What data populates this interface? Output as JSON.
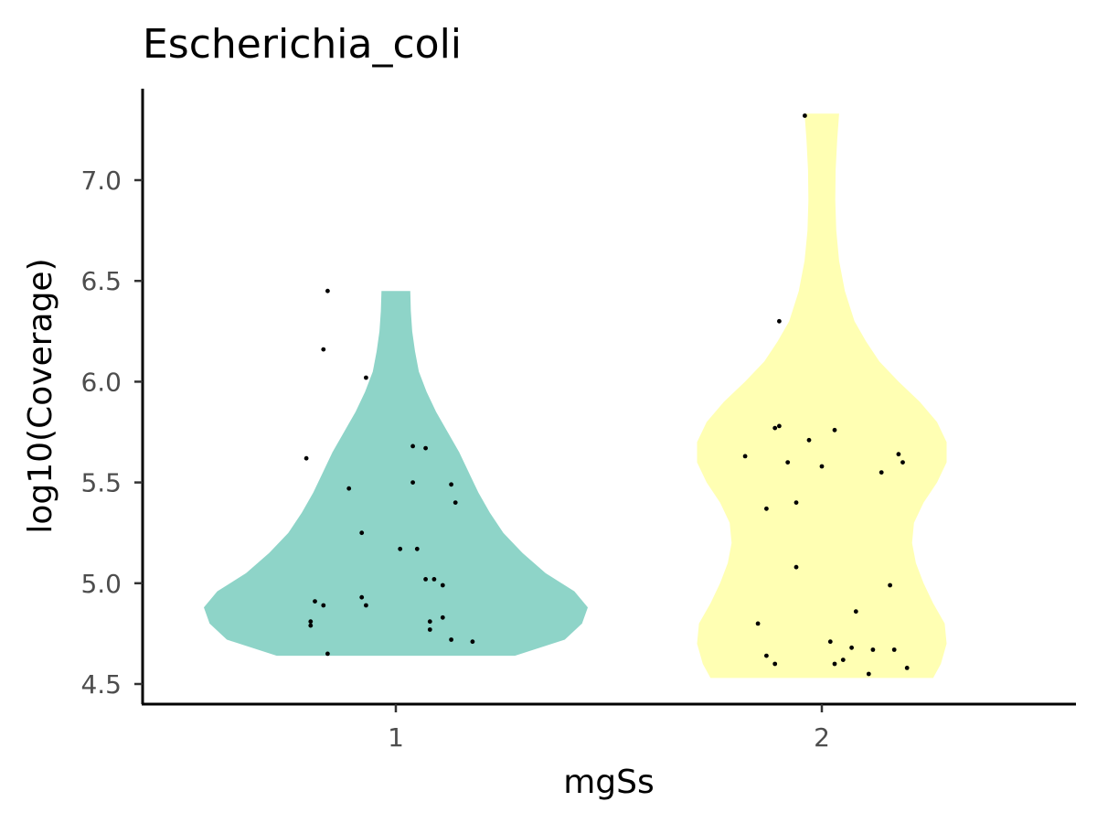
{
  "chart_data": {
    "type": "violin",
    "title": "Escherichia_coli",
    "xlabel": "mgSs",
    "ylabel": "log10(Coverage)",
    "categories": [
      "1",
      "2"
    ],
    "ylim": [
      4.45,
      7.35
    ],
    "yticks": [
      "4.5",
      "5.0",
      "5.5",
      "6.0",
      "6.5",
      "7.0"
    ],
    "grid": false,
    "legend": "none",
    "colors": {
      "1": "#8ED4C8",
      "2": "#FFFFB3"
    },
    "series": [
      {
        "category": "1",
        "range": [
          4.64,
          6.45
        ],
        "density": [
          [
            4.64,
            0.62
          ],
          [
            4.72,
            0.88
          ],
          [
            4.8,
            0.97
          ],
          [
            4.88,
            1.0
          ],
          [
            4.96,
            0.93
          ],
          [
            5.05,
            0.78
          ],
          [
            5.15,
            0.66
          ],
          [
            5.25,
            0.56
          ],
          [
            5.35,
            0.49
          ],
          [
            5.45,
            0.43
          ],
          [
            5.55,
            0.38
          ],
          [
            5.65,
            0.33
          ],
          [
            5.75,
            0.27
          ],
          [
            5.85,
            0.21
          ],
          [
            5.95,
            0.16
          ],
          [
            6.05,
            0.12
          ],
          [
            6.15,
            0.1
          ],
          [
            6.25,
            0.085
          ],
          [
            6.35,
            0.078
          ],
          [
            6.45,
            0.075
          ]
        ],
        "points": [
          [
            0.79,
            5.62
          ],
          [
            0.83,
            6.16
          ],
          [
            0.84,
            6.45
          ],
          [
            0.93,
            6.02
          ],
          [
            0.89,
            5.47
          ],
          [
            0.92,
            5.25
          ],
          [
            0.81,
            4.91
          ],
          [
            0.83,
            4.89
          ],
          [
            0.8,
            4.81
          ],
          [
            0.8,
            4.79
          ],
          [
            0.84,
            4.65
          ],
          [
            0.92,
            4.93
          ],
          [
            0.93,
            4.89
          ],
          [
            1.01,
            5.17
          ],
          [
            1.05,
            5.17
          ],
          [
            1.04,
            5.68
          ],
          [
            1.07,
            5.67
          ],
          [
            1.04,
            5.5
          ],
          [
            1.13,
            5.49
          ],
          [
            1.14,
            5.4
          ],
          [
            1.07,
            5.02
          ],
          [
            1.09,
            5.02
          ],
          [
            1.11,
            4.99
          ],
          [
            1.08,
            4.81
          ],
          [
            1.08,
            4.77
          ],
          [
            1.11,
            4.83
          ],
          [
            1.13,
            4.72
          ],
          [
            1.18,
            4.71
          ]
        ]
      },
      {
        "category": "2",
        "range": [
          4.53,
          7.33
        ],
        "density": [
          [
            4.53,
            0.58
          ],
          [
            4.6,
            0.62
          ],
          [
            4.7,
            0.65
          ],
          [
            4.8,
            0.64
          ],
          [
            4.9,
            0.58
          ],
          [
            5.0,
            0.53
          ],
          [
            5.1,
            0.49
          ],
          [
            5.2,
            0.47
          ],
          [
            5.3,
            0.48
          ],
          [
            5.4,
            0.53
          ],
          [
            5.5,
            0.6
          ],
          [
            5.6,
            0.65
          ],
          [
            5.7,
            0.65
          ],
          [
            5.8,
            0.6
          ],
          [
            5.9,
            0.51
          ],
          [
            6.0,
            0.4
          ],
          [
            6.1,
            0.3
          ],
          [
            6.2,
            0.23
          ],
          [
            6.3,
            0.17
          ],
          [
            6.45,
            0.12
          ],
          [
            6.6,
            0.09
          ],
          [
            6.75,
            0.075
          ],
          [
            6.9,
            0.07
          ],
          [
            7.05,
            0.072
          ],
          [
            7.2,
            0.08
          ],
          [
            7.33,
            0.09
          ]
        ],
        "points": [
          [
            1.96,
            7.32
          ],
          [
            1.9,
            6.3
          ],
          [
            1.82,
            5.63
          ],
          [
            1.89,
            5.77
          ],
          [
            1.9,
            5.78
          ],
          [
            2.03,
            5.76
          ],
          [
            1.97,
            5.71
          ],
          [
            1.92,
            5.6
          ],
          [
            2.0,
            5.58
          ],
          [
            1.87,
            5.37
          ],
          [
            1.94,
            5.4
          ],
          [
            1.94,
            5.08
          ],
          [
            2.14,
            5.55
          ],
          [
            2.18,
            5.64
          ],
          [
            2.19,
            5.6
          ],
          [
            2.16,
            4.99
          ],
          [
            2.08,
            4.86
          ],
          [
            1.85,
            4.8
          ],
          [
            1.87,
            4.64
          ],
          [
            1.89,
            4.6
          ],
          [
            2.02,
            4.71
          ],
          [
            2.07,
            4.68
          ],
          [
            2.12,
            4.67
          ],
          [
            2.17,
            4.67
          ],
          [
            2.03,
            4.6
          ],
          [
            2.05,
            4.62
          ],
          [
            2.11,
            4.55
          ],
          [
            2.2,
            4.58
          ]
        ]
      }
    ]
  }
}
